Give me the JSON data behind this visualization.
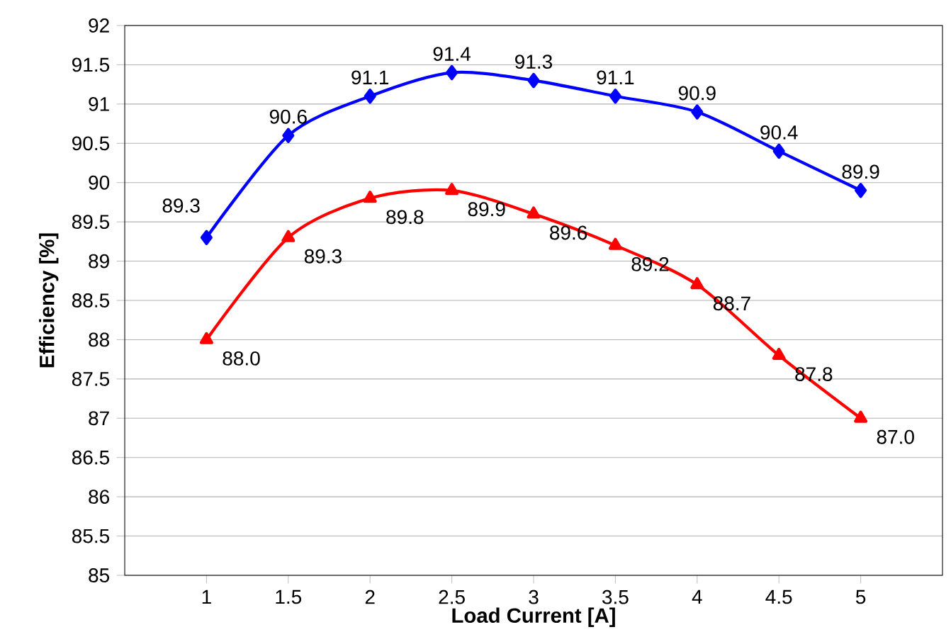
{
  "chart_data": {
    "type": "line",
    "xlabel": "Load Current [A]",
    "ylabel": "Efficiency [%]",
    "x": [
      1,
      1.5,
      2,
      2.5,
      3,
      3.5,
      4,
      4.5,
      5
    ],
    "series": [
      {
        "color": "#ff0000",
        "marker": "triangle",
        "values": [
          88.0,
          89.3,
          89.8,
          89.9,
          89.6,
          89.2,
          88.7,
          87.8,
          87.0
        ],
        "value_labels": [
          "88.0",
          "89.3",
          "89.8",
          "89.9",
          "89.6",
          "89.2",
          "88.7",
          "87.8",
          "87.0"
        ]
      },
      {
        "color": "#0000ff",
        "marker": "diamond",
        "values": [
          89.3,
          90.6,
          91.1,
          91.4,
          91.3,
          91.1,
          90.9,
          90.4,
          89.9
        ],
        "value_labels": [
          "89.3",
          "90.6",
          "91.1",
          "91.4",
          "91.3",
          "91.1",
          "90.9",
          "90.4",
          "89.9"
        ]
      }
    ],
    "xlim": [
      0.5,
      5.5
    ],
    "xticks": [
      1,
      1.5,
      2,
      2.5,
      3,
      3.5,
      4,
      4.5,
      5
    ],
    "ylim": [
      85,
      92
    ],
    "yticks": [
      85,
      85.5,
      86,
      86.5,
      87,
      87.5,
      88,
      88.5,
      89,
      89.5,
      90,
      90.5,
      91,
      91.5,
      92
    ],
    "grid": "y",
    "line_style": "solid"
  }
}
